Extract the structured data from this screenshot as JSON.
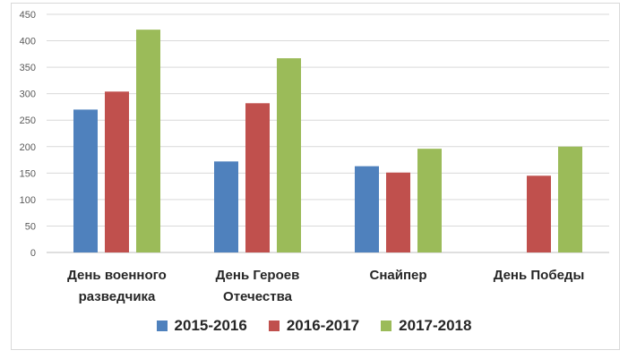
{
  "chart_data": {
    "type": "bar",
    "categories": [
      [
        "День военного",
        "разведчика"
      ],
      [
        "День Героев",
        "Отечества"
      ],
      [
        "Снайпер"
      ],
      [
        "День Победы"
      ]
    ],
    "series": [
      {
        "name": "2015-2016",
        "color": "#4f81bd",
        "values": [
          270,
          172,
          163,
          null
        ]
      },
      {
        "name": "2016-2017",
        "color": "#c0504d",
        "values": [
          304,
          282,
          151,
          145
        ]
      },
      {
        "name": "2017-2018",
        "color": "#9bbb59",
        "values": [
          421,
          367,
          196,
          200
        ]
      }
    ],
    "ylim": [
      0,
      450
    ],
    "yticks": [
      0,
      50,
      100,
      150,
      200,
      250,
      300,
      350,
      400,
      450
    ],
    "grid": true,
    "legend_position": "bottom"
  }
}
